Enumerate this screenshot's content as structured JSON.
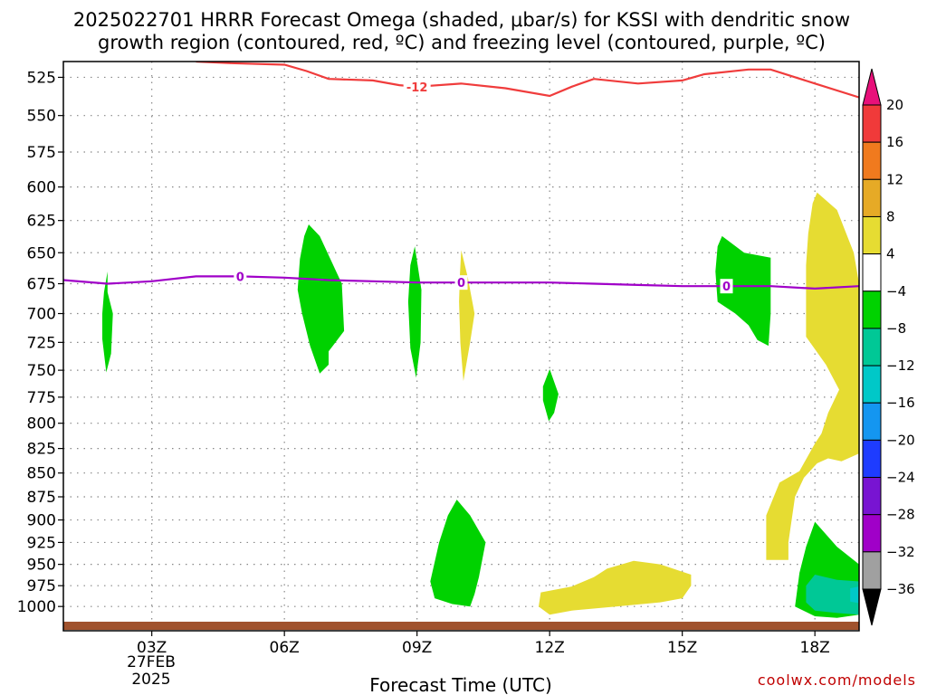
{
  "chart_data": {
    "type": "time-height cross section",
    "title_line1": "2025022701 HRRR Forecast Omega (shaded, μbar/s) for KSSI with dendritic snow",
    "title_line2": "growth region (contoured, red, ºC) and freezing level (contoured, purple, ºC)",
    "xlabel": "Forecast Time (UTC)",
    "credit": "coolwx.com/models",
    "x_range": [
      1,
      19
    ],
    "y_range": [
      515,
      1030
    ],
    "y_ticks": [
      525,
      550,
      575,
      600,
      625,
      650,
      675,
      700,
      725,
      750,
      775,
      800,
      825,
      850,
      875,
      900,
      925,
      950,
      975,
      1000
    ],
    "y_tick_labels": [
      "525",
      "550",
      "575",
      "600",
      "625",
      "650",
      "675",
      "700",
      "725",
      "750",
      "775",
      "800",
      "825",
      "850",
      "875",
      "900",
      "925",
      "950",
      "975",
      "1000"
    ],
    "x_ticks": [
      3,
      6,
      9,
      12,
      15,
      18
    ],
    "x_tick_labels": [
      "03Z",
      "06Z",
      "09Z",
      "12Z",
      "15Z",
      "18Z"
    ],
    "date_label_line1": "27FEB",
    "date_label_line2": "2025",
    "grid": true,
    "colorbar": {
      "levels": [
        20,
        16,
        12,
        8,
        4,
        -4,
        -8,
        -12,
        -16,
        -20,
        -24,
        -28,
        -32,
        -36
      ],
      "level_labels": [
        "20",
        "16",
        "12",
        "8",
        "4",
        "−4",
        "−8",
        "−12",
        "−16",
        "−20",
        "−24",
        "−28",
        "−32",
        "−36"
      ],
      "top_arrow_color": "#e8107a",
      "bottom_arrow_color": "#000000",
      "bands": [
        {
          "range": [
            16,
            20
          ],
          "color": "#f03a3a"
        },
        {
          "range": [
            12,
            16
          ],
          "color": "#f07a1e"
        },
        {
          "range": [
            8,
            12
          ],
          "color": "#e6aa26"
        },
        {
          "range": [
            4,
            8
          ],
          "color": "#e6dc32"
        },
        {
          "range": [
            -4,
            4
          ],
          "color": "#ffffff"
        },
        {
          "range": [
            -8,
            -4
          ],
          "color": "#00d200"
        },
        {
          "range": [
            -12,
            -8
          ],
          "color": "#00c896"
        },
        {
          "range": [
            -16,
            -12
          ],
          "color": "#00c8c8"
        },
        {
          "range": [
            -20,
            -16
          ],
          "color": "#1496f0"
        },
        {
          "range": [
            -24,
            -20
          ],
          "color": "#1e3cff"
        },
        {
          "range": [
            -28,
            -24
          ],
          "color": "#7814d2"
        },
        {
          "range": [
            -32,
            -28
          ],
          "color": "#a000c8"
        },
        {
          "range": [
            -36,
            -32
          ],
          "color": "#a0a0a0"
        }
      ]
    },
    "shaded_regions": [
      {
        "omega": "-4 to -8",
        "color": "#00d200",
        "outline": [
          [
            2.0,
            682
          ],
          [
            2.12,
            700
          ],
          [
            2.08,
            735
          ],
          [
            1.97,
            752
          ],
          [
            1.88,
            722
          ],
          [
            1.88,
            700
          ],
          [
            1.92,
            682
          ],
          [
            2.0,
            665
          ]
        ]
      },
      {
        "omega": "-4 to -8",
        "color": "#00d200",
        "outline": [
          [
            6.55,
            628
          ],
          [
            6.8,
            637
          ],
          [
            7.0,
            652
          ],
          [
            7.3,
            675
          ],
          [
            7.35,
            715
          ],
          [
            7.0,
            733
          ],
          [
            7.0,
            745
          ],
          [
            6.8,
            753
          ],
          [
            6.58,
            728
          ],
          [
            6.4,
            700
          ],
          [
            6.3,
            680
          ],
          [
            6.35,
            655
          ],
          [
            6.45,
            637
          ]
        ]
      },
      {
        "omega": "-4 to -8",
        "color": "#00d200",
        "outline": [
          [
            8.95,
            645
          ],
          [
            9.1,
            680
          ],
          [
            9.08,
            725
          ],
          [
            8.98,
            757
          ],
          [
            8.85,
            730
          ],
          [
            8.8,
            690
          ],
          [
            8.85,
            660
          ]
        ]
      },
      {
        "omega": "4 to 8",
        "color": "#e6dc32",
        "outline": [
          [
            10.0,
            648
          ],
          [
            10.15,
            670
          ],
          [
            10.3,
            700
          ],
          [
            10.2,
            725
          ],
          [
            10.05,
            760
          ],
          [
            9.98,
            725
          ],
          [
            9.95,
            690
          ],
          [
            9.97,
            668
          ]
        ]
      },
      {
        "omega": "-4 to -8",
        "color": "#00d200",
        "outline": [
          [
            12.0,
            749
          ],
          [
            12.2,
            772
          ],
          [
            12.1,
            790
          ],
          [
            11.98,
            798
          ],
          [
            11.85,
            778
          ],
          [
            11.85,
            765
          ]
        ]
      },
      {
        "omega": "-4 to -8",
        "color": "#00d200",
        "outline": [
          [
            15.9,
            637
          ],
          [
            16.4,
            650
          ],
          [
            17.0,
            654
          ],
          [
            17.0,
            700
          ],
          [
            16.95,
            728
          ],
          [
            16.7,
            723
          ],
          [
            16.5,
            710
          ],
          [
            16.2,
            700
          ],
          [
            15.8,
            690
          ],
          [
            15.75,
            665
          ],
          [
            15.8,
            645
          ]
        ]
      },
      {
        "omega": "4 to 8",
        "color": "#e6dc32",
        "outline": [
          [
            18.05,
            604
          ],
          [
            18.5,
            617
          ],
          [
            18.88,
            650
          ],
          [
            19.0,
            675
          ],
          [
            19.0,
            830
          ],
          [
            18.6,
            838
          ],
          [
            18.3,
            835
          ],
          [
            18.05,
            840
          ],
          [
            17.75,
            855
          ],
          [
            17.55,
            875
          ],
          [
            17.4,
            925
          ],
          [
            17.4,
            945
          ],
          [
            16.9,
            945
          ],
          [
            16.9,
            895
          ],
          [
            17.2,
            860
          ],
          [
            17.65,
            848
          ],
          [
            18.0,
            820
          ],
          [
            18.15,
            810
          ],
          [
            18.3,
            790
          ],
          [
            18.55,
            768
          ],
          [
            18.25,
            745
          ],
          [
            17.8,
            720
          ],
          [
            17.8,
            700
          ],
          [
            17.8,
            660
          ],
          [
            17.85,
            635
          ],
          [
            17.95,
            612
          ]
        ]
      },
      {
        "omega": "-4 to -8",
        "color": "#00d200",
        "outline": [
          [
            9.9,
            878
          ],
          [
            10.2,
            895
          ],
          [
            10.55,
            925
          ],
          [
            10.4,
            965
          ],
          [
            10.3,
            985
          ],
          [
            10.2,
            1000
          ],
          [
            9.8,
            997
          ],
          [
            9.4,
            990
          ],
          [
            9.3,
            970
          ],
          [
            9.5,
            925
          ],
          [
            9.7,
            895
          ]
        ]
      },
      {
        "omega": "4 to 8",
        "color": "#e6dc32",
        "outline": [
          [
            11.8,
            983
          ],
          [
            12.5,
            976
          ],
          [
            13.0,
            965
          ],
          [
            13.3,
            955
          ],
          [
            13.9,
            946
          ],
          [
            14.5,
            950
          ],
          [
            15.2,
            962
          ],
          [
            15.2,
            975
          ],
          [
            15.0,
            990
          ],
          [
            14.5,
            995
          ],
          [
            13.5,
            1000
          ],
          [
            12.5,
            1005
          ],
          [
            12.0,
            1010
          ],
          [
            11.75,
            1000
          ]
        ]
      },
      {
        "omega": "-4 to -8",
        "color": "#00d200",
        "outline": [
          [
            18.0,
            902
          ],
          [
            18.5,
            930
          ],
          [
            19.0,
            950
          ],
          [
            19.0,
            1010
          ],
          [
            18.5,
            1014
          ],
          [
            18.0,
            1012
          ],
          [
            17.55,
            1000
          ],
          [
            17.65,
            960
          ],
          [
            17.8,
            930
          ]
        ]
      },
      {
        "omega": "-8 to -12",
        "color": "#00c896",
        "outline": [
          [
            18.0,
            962
          ],
          [
            18.5,
            968
          ],
          [
            19.0,
            970
          ],
          [
            19.0,
            1010
          ],
          [
            18.5,
            1008
          ],
          [
            18.0,
            1005
          ],
          [
            17.8,
            995
          ],
          [
            17.8,
            975
          ]
        ]
      },
      {
        "omega": "-12 to -16",
        "color": "#00c8c8",
        "outline": [
          [
            18.8,
            978
          ],
          [
            19.0,
            976
          ],
          [
            19.0,
            996
          ],
          [
            18.8,
            994
          ]
        ]
      }
    ],
    "contours": [
      {
        "name": "dendritic snow growth region",
        "level": -12,
        "level_label": "-12",
        "color": "#f03c3c",
        "points": [
          [
            4.0,
            515
          ],
          [
            4.8,
            516
          ],
          [
            6.0,
            517
          ],
          [
            6.5,
            521
          ],
          [
            7.0,
            526
          ],
          [
            8.0,
            527
          ],
          [
            8.6,
            530
          ],
          [
            9.0,
            531
          ],
          [
            10.0,
            529
          ],
          [
            11.0,
            532
          ],
          [
            12.0,
            537
          ],
          [
            12.5,
            531
          ],
          [
            13.0,
            526
          ],
          [
            14.0,
            529
          ],
          [
            15.0,
            527
          ],
          [
            15.5,
            523
          ],
          [
            16.5,
            520
          ],
          [
            17.0,
            520
          ],
          [
            18.0,
            529
          ],
          [
            19.0,
            538
          ]
        ],
        "label_x": 9.0
      },
      {
        "name": "freezing level",
        "level": 0,
        "level_label": "0",
        "color": "#a000c8",
        "points": [
          [
            1.0,
            672
          ],
          [
            2.0,
            675
          ],
          [
            3.0,
            673
          ],
          [
            4.0,
            669
          ],
          [
            5.0,
            669
          ],
          [
            6.0,
            670
          ],
          [
            7.0,
            672
          ],
          [
            8.0,
            673
          ],
          [
            9.0,
            674
          ],
          [
            10.0,
            674
          ],
          [
            11.0,
            674
          ],
          [
            12.0,
            674
          ],
          [
            13.0,
            675
          ],
          [
            14.0,
            676
          ],
          [
            15.0,
            677
          ],
          [
            16.0,
            677
          ],
          [
            17.0,
            677
          ],
          [
            18.0,
            679
          ],
          [
            19.0,
            677
          ]
        ],
        "label_xs": [
          5.0,
          10.0,
          16.0
        ]
      }
    ],
    "ground_color": "#a0522d"
  }
}
